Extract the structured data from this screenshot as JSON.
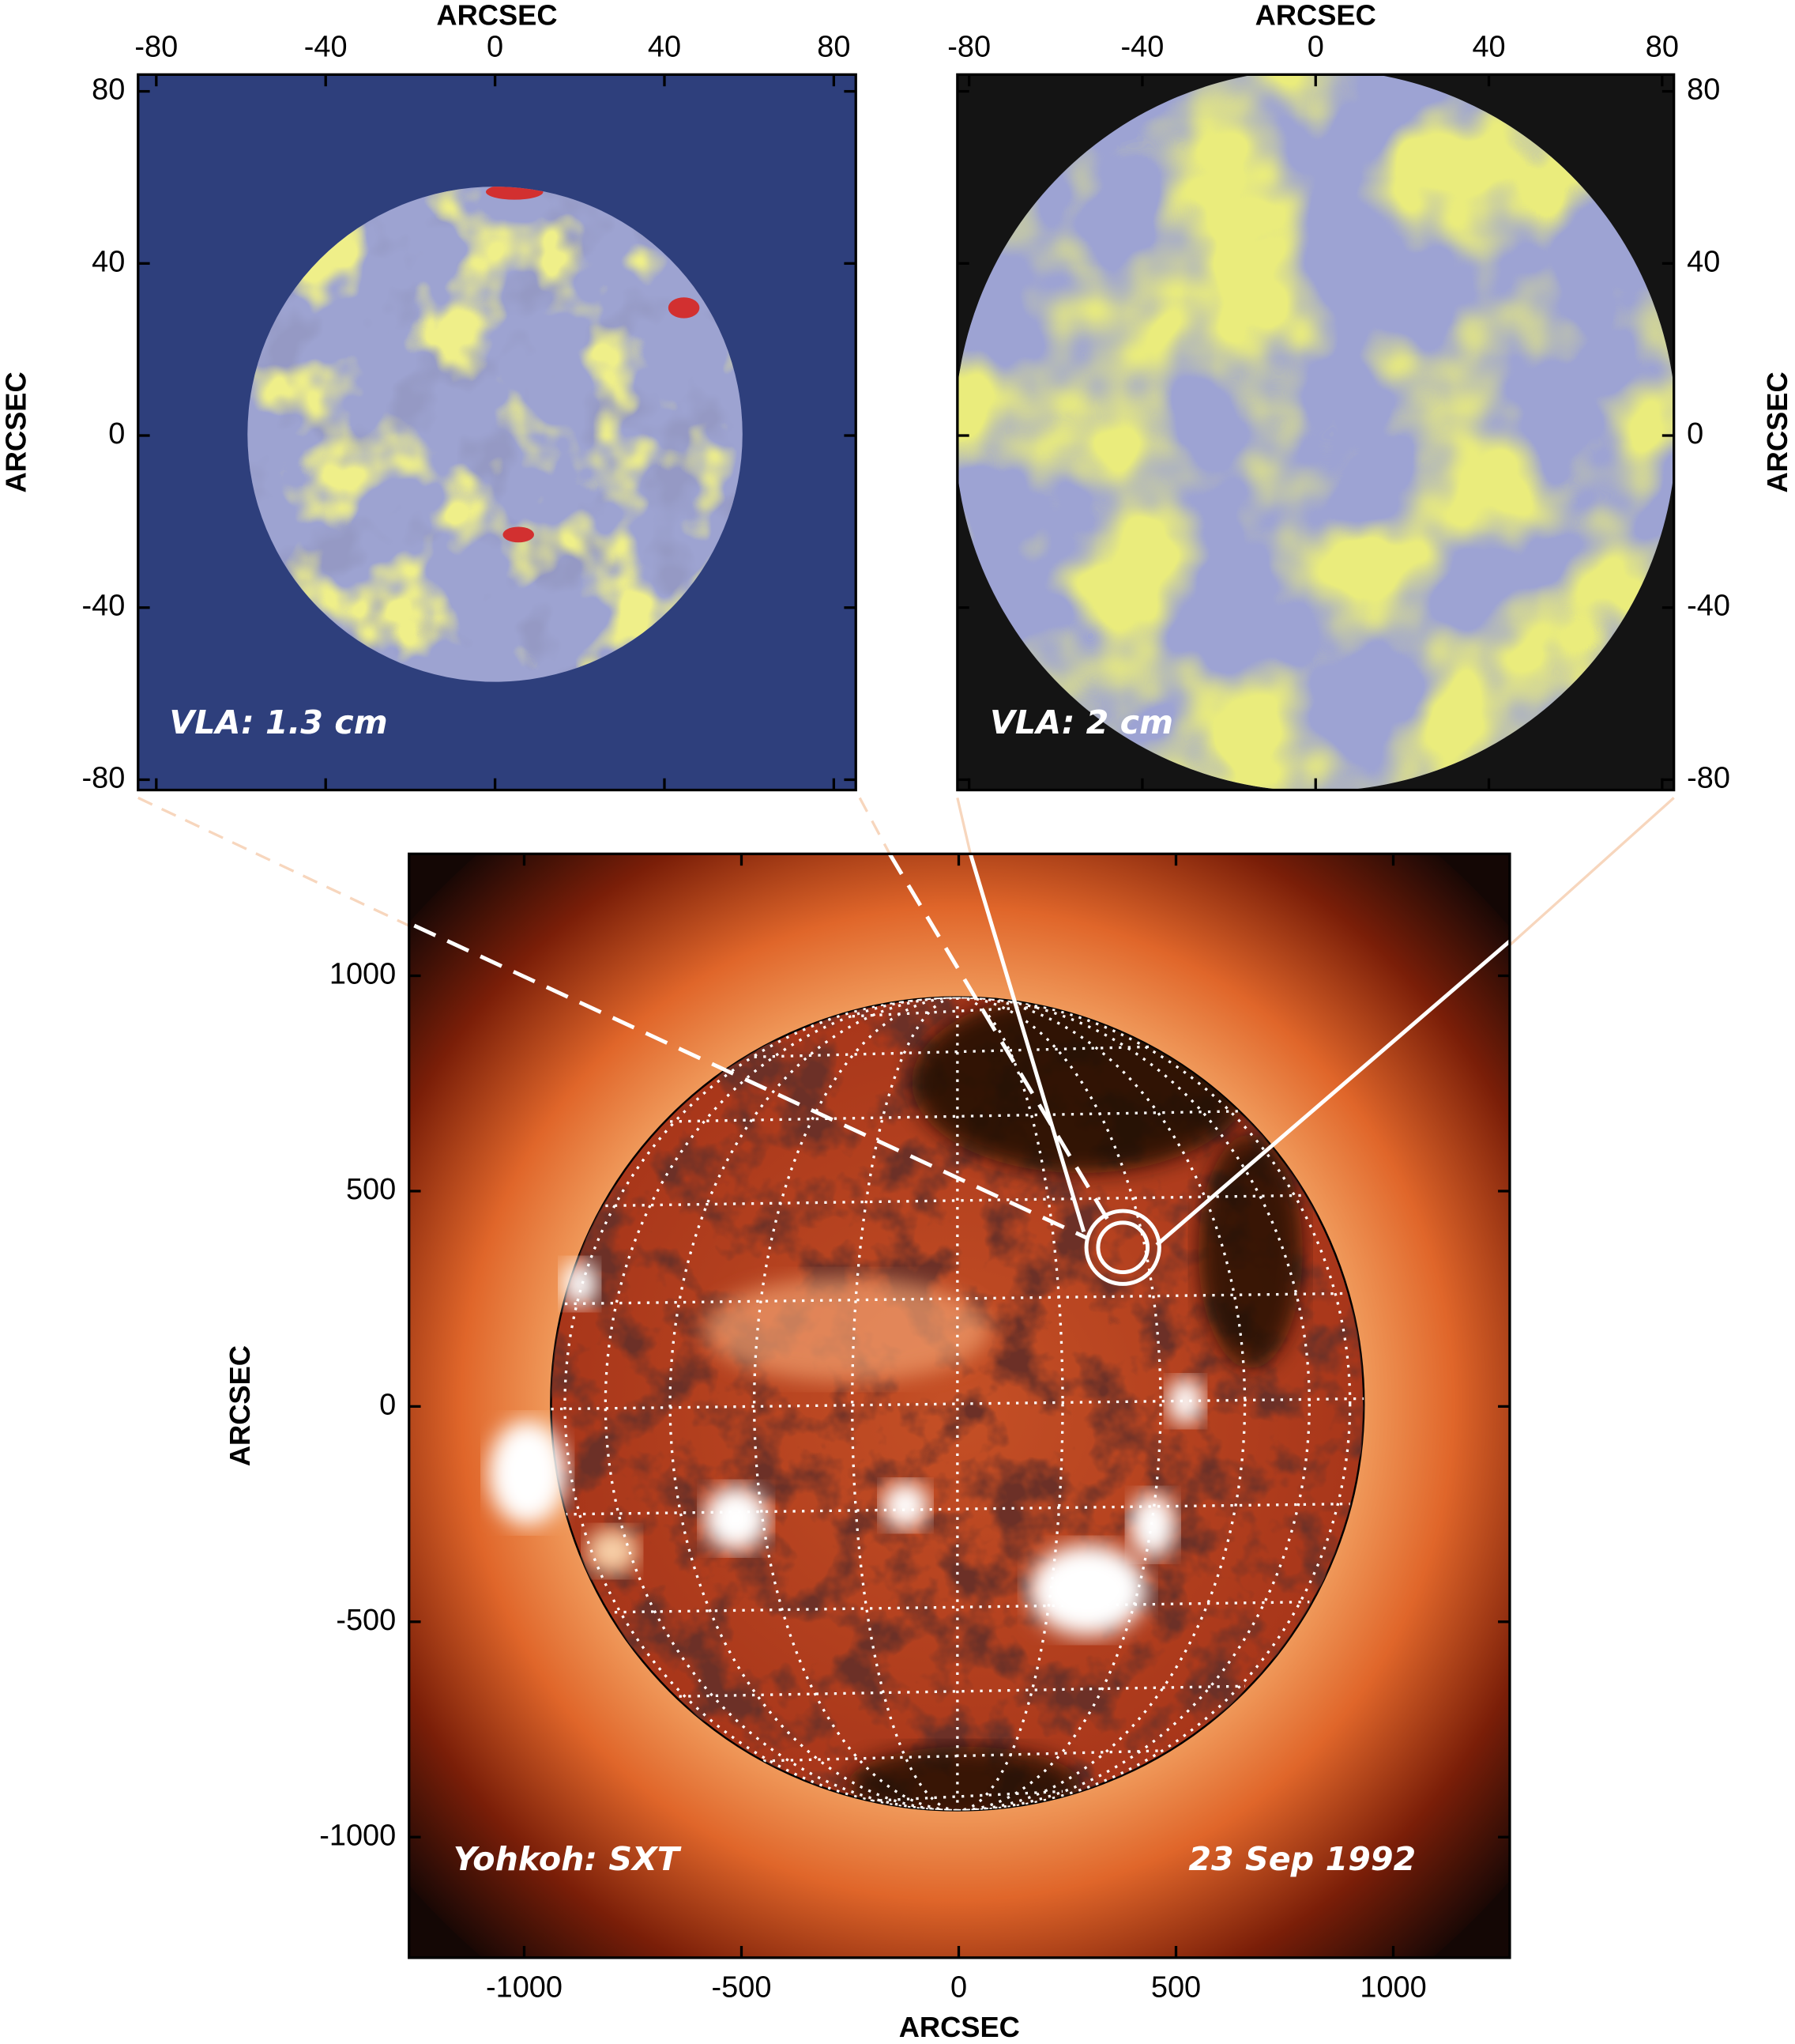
{
  "panels": [
    {
      "label": "VLA: 1.3 cm",
      "xlabel": "ARCSEC",
      "ylabel": "ARCSEC",
      "xlim": [
        -84.3,
        85.2
      ],
      "ylim": [
        -82.4,
        83.9
      ],
      "xticks": [
        -80,
        -40,
        0,
        40,
        80
      ],
      "yticks": [
        -80,
        -40,
        0,
        40,
        80
      ]
    },
    {
      "label": "VLA: 2 cm",
      "xlabel": "ARCSEC",
      "ylabel": "ARCSEC",
      "xlim": [
        -82.7,
        82.7
      ],
      "ylim": [
        -82.4,
        83.9
      ],
      "xticks": [
        -80,
        -40,
        0,
        40,
        80
      ],
      "yticks": [
        -80,
        -40,
        0,
        40,
        80
      ]
    },
    {
      "label": "Yohkoh: SXT",
      "date": "23 Sep 1992",
      "xlabel": "ARCSEC",
      "ylabel": "ARCSEC",
      "xlim": [
        -1265,
        1268
      ],
      "ylim": [
        -1280,
        1283
      ],
      "xticks": [
        -1000,
        -500,
        0,
        500,
        1000
      ],
      "yticks": [
        -1000,
        -500,
        0,
        500,
        1000
      ]
    }
  ]
}
